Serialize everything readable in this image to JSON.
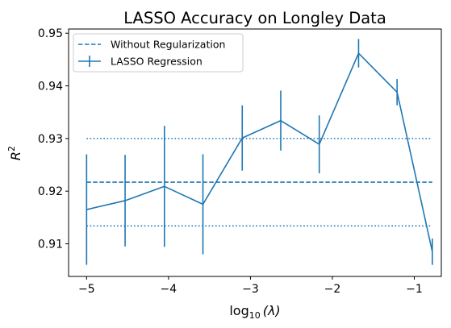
{
  "chart_data": {
    "type": "line",
    "title": "LASSO Accuracy on Longley Data",
    "xlabel": "log",
    "xlabel_sub": "10",
    "xlabel_tail": "(λ)",
    "ylabel": "R",
    "ylabel_sup": "2",
    "xlim": [
      -5.22,
      -0.67
    ],
    "ylim": [
      0.9038,
      0.9508
    ],
    "xticks": [
      -5,
      -4,
      -3,
      -2,
      -1
    ],
    "xtick_labels": [
      "−5",
      "−4",
      "−3",
      "−2",
      "−1"
    ],
    "yticks": [
      0.91,
      0.92,
      0.93,
      0.94,
      0.95
    ],
    "ytick_labels": [
      "0.91",
      "0.92",
      "0.93",
      "0.94",
      "0.95"
    ],
    "color": "#1f77b4",
    "legend_position": "top-left",
    "series": [
      {
        "name": "LASSO Regression",
        "style": "solid-with-errorbars",
        "x": [
          -5.0,
          -4.53,
          -4.05,
          -3.58,
          -3.1,
          -2.63,
          -2.16,
          -1.68,
          -1.21,
          -0.78
        ],
        "y": [
          0.9165,
          0.9182,
          0.9209,
          0.9175,
          0.9301,
          0.9334,
          0.9289,
          0.9462,
          0.9388,
          0.9085
        ],
        "yerr": [
          0.0105,
          0.0087,
          0.0115,
          0.0095,
          0.0062,
          0.0057,
          0.0055,
          0.0027,
          0.0025,
          0.0025
        ]
      },
      {
        "name": "Without Regularization",
        "style": "dashed",
        "x": [
          -5.0,
          -0.78
        ],
        "y": [
          0.9217,
          0.9217
        ],
        "band": [
          0.9134,
          0.93
        ]
      }
    ]
  }
}
